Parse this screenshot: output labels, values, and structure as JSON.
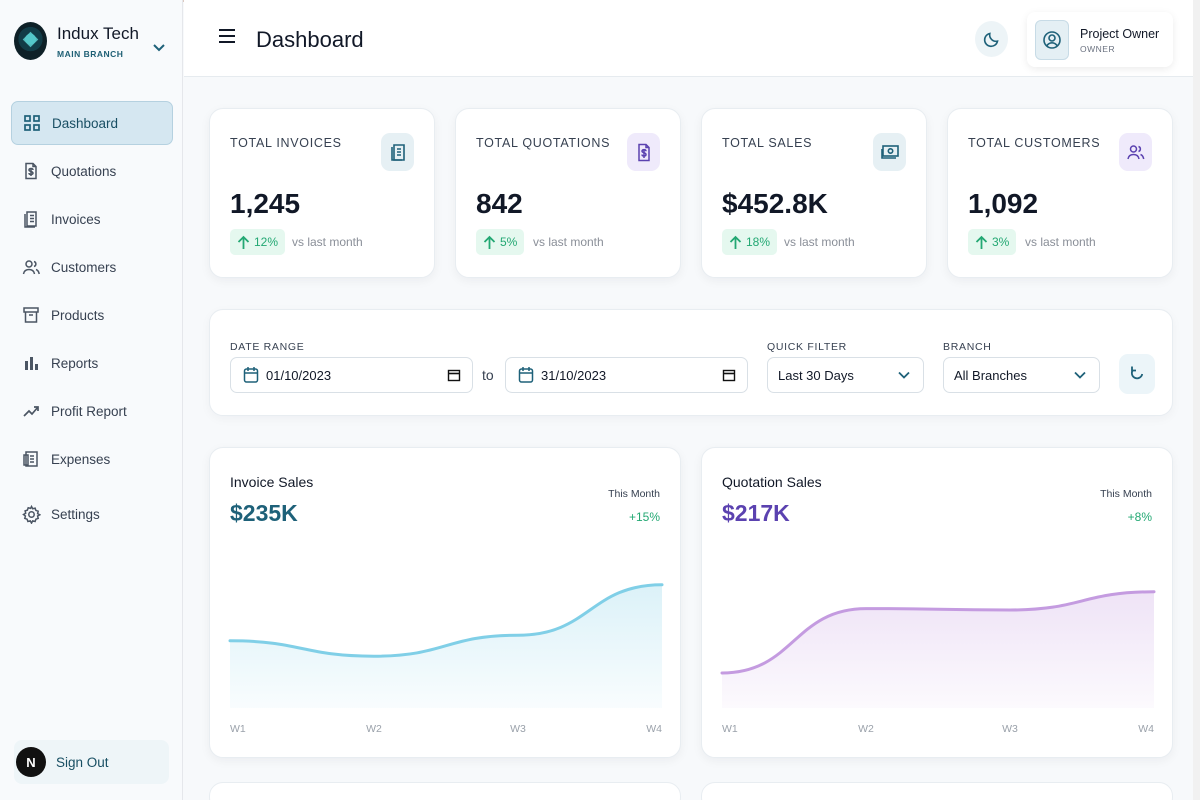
{
  "app": {
    "company": "Indux Tech",
    "branch": "MAIN BRANCH",
    "colors": {
      "accent": "#1e6179",
      "green": "#23a873",
      "purple": "#5b42b0",
      "invoiceLine": "#80cfe7",
      "quotationLine": "#c49be0"
    }
  },
  "sidebar": {
    "items": [
      {
        "label": "Dashboard",
        "icon": "dashboard-grid-icon",
        "active": true
      },
      {
        "label": "Quotations",
        "icon": "dollar-document-icon"
      },
      {
        "label": "Invoices",
        "icon": "invoice-icon"
      },
      {
        "label": "Customers",
        "icon": "users-icon"
      },
      {
        "label": "Products",
        "icon": "archive-box-icon"
      },
      {
        "label": "Reports",
        "icon": "bar-chart-icon"
      },
      {
        "label": "Profit Report",
        "icon": "trending-up-icon"
      },
      {
        "label": "Expenses",
        "icon": "expense-icon"
      },
      {
        "label": "Settings",
        "icon": "gear-icon"
      }
    ],
    "signout": {
      "avatar": "N",
      "label": "Sign Out"
    }
  },
  "header": {
    "title": "Dashboard",
    "user": {
      "name": "Project Owner",
      "role": "OWNER"
    }
  },
  "stats": [
    {
      "label": "TOTAL INVOICES",
      "value": "1,245",
      "trend": "12%",
      "comparison": "vs last month",
      "icon": "invoice-icon",
      "iconColor": "#1e6179",
      "iconBg": "#e6f0f4"
    },
    {
      "label": "TOTAL QUOTATIONS",
      "value": "842",
      "trend": "5%",
      "comparison": "vs last month",
      "icon": "dollar-document-icon",
      "iconColor": "#5b42b0",
      "iconBg": "#efeafb"
    },
    {
      "label": "TOTAL SALES",
      "value": "$452.8K",
      "trend": "18%",
      "comparison": "vs last month",
      "icon": "money-icon",
      "iconColor": "#1e6179",
      "iconBg": "#e6f0f4"
    },
    {
      "label": "TOTAL CUSTOMERS",
      "value": "1,092",
      "trend": "3%",
      "comparison": "vs last month",
      "icon": "users-icon",
      "iconColor": "#5b42b0",
      "iconBg": "#efeafb"
    }
  ],
  "filters": {
    "date_range_label": "DATE RANGE",
    "start_date": "01/10/2023",
    "to": "to",
    "end_date": "31/10/2023",
    "quick_filter_label": "QUICK FILTER",
    "quick_filter_value": "Last 30 Days",
    "branch_label": "BRANCH",
    "branch_value": "All Branches"
  },
  "charts": {
    "invoice": {
      "title": "Invoice Sales",
      "value": "$235K",
      "period": "This Month",
      "delta": "+15%"
    },
    "quotation": {
      "title": "Quotation Sales",
      "value": "$217K",
      "period": "This Month",
      "delta": "+8%"
    }
  },
  "chart_data": [
    {
      "type": "area",
      "title": "Invoice Sales",
      "x": [
        "W1",
        "W2",
        "W3",
        "W4"
      ],
      "series": [
        {
          "values": [
            48,
            37,
            52,
            88
          ]
        }
      ],
      "ylim": [
        0,
        100
      ],
      "grid": false,
      "color": "#80cfe7"
    },
    {
      "type": "area",
      "title": "Quotation Sales",
      "x": [
        "W1",
        "W2",
        "W3",
        "W4"
      ],
      "series": [
        {
          "values": [
            25,
            71,
            70,
            83
          ]
        }
      ],
      "ylim": [
        0,
        100
      ],
      "grid": false,
      "color": "#c49be0"
    }
  ]
}
